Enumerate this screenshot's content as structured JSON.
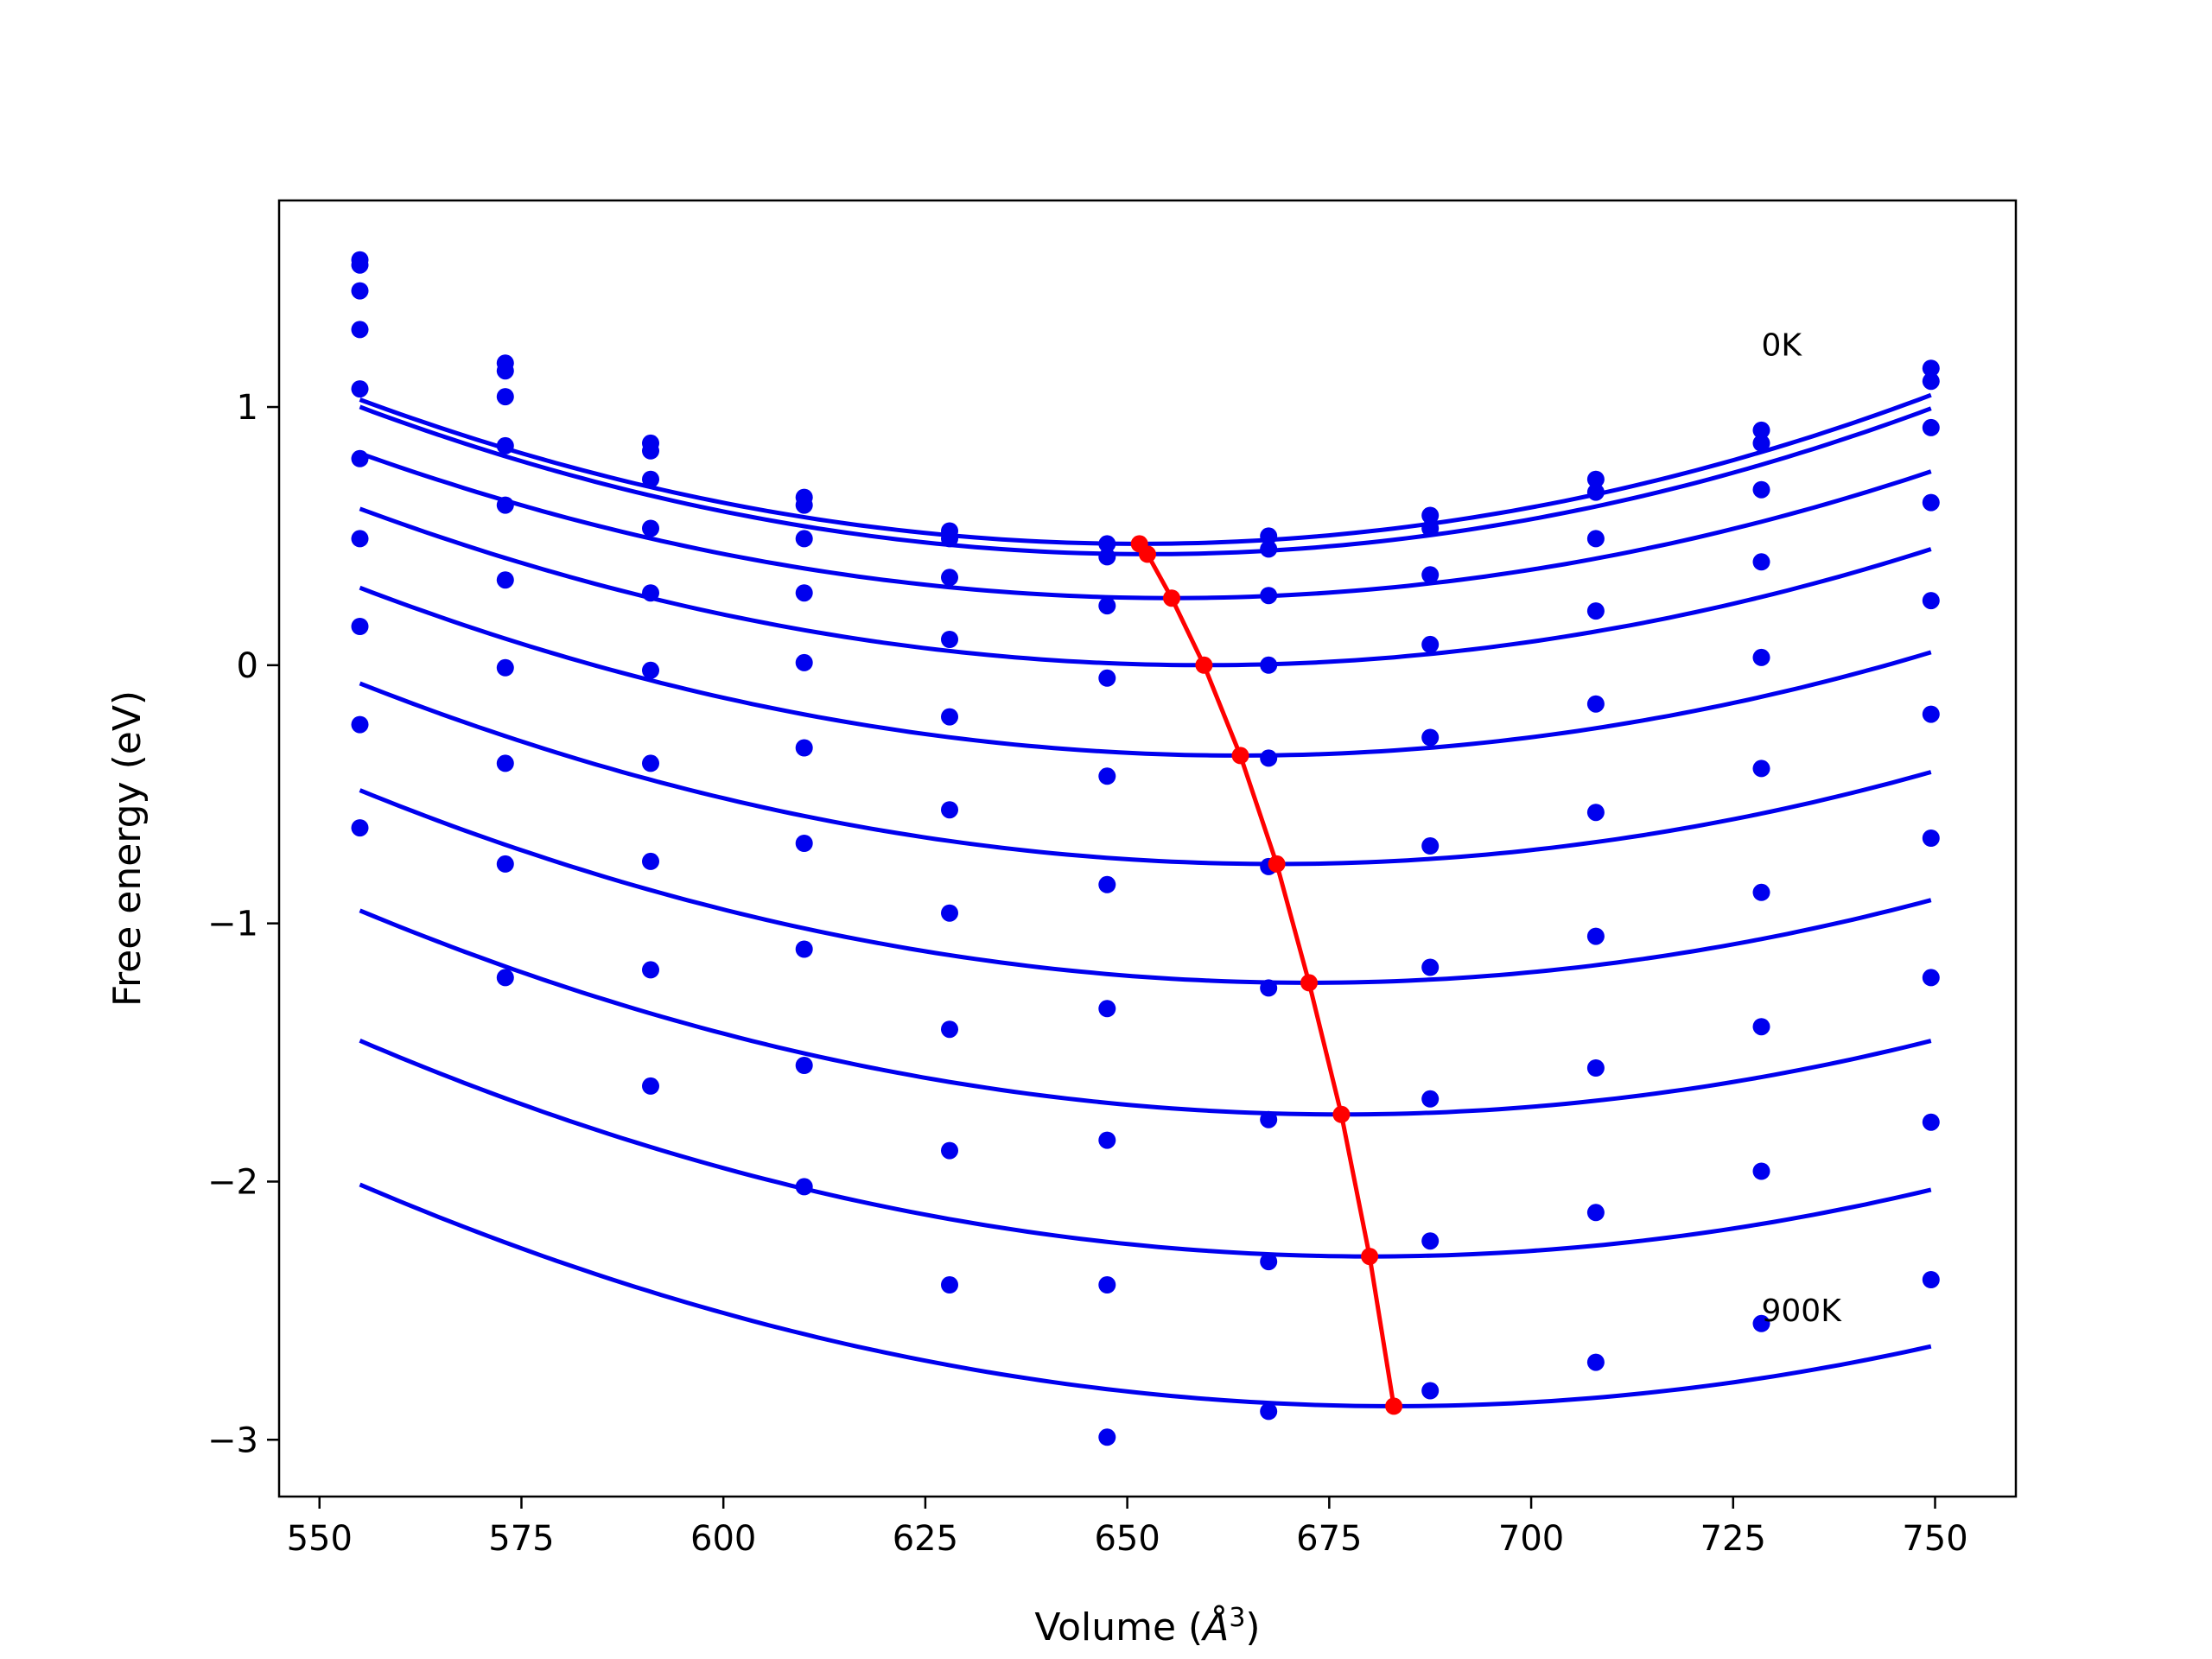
{
  "chart_data": {
    "type": "line",
    "xlabel_prefix": "Volume (",
    "xlabel_symbol": "Å",
    "xlabel_sup": "3",
    "xlabel_suffix": ")",
    "ylabel": "Free energy (eV)",
    "xlim": [
      545,
      760
    ],
    "ylim": [
      -3.22,
      1.8
    ],
    "xticks": [
      550,
      575,
      600,
      625,
      650,
      675,
      700,
      725,
      750
    ],
    "yticks": [
      -3,
      -2,
      -1,
      0,
      1
    ],
    "grid": false,
    "legend": "none",
    "annotations": [
      {
        "text": "0K",
        "x": 728.5,
        "y": 1.2
      },
      {
        "text": "900K",
        "x": 728.5,
        "y": -2.54
      }
    ],
    "colors": {
      "curves": "#0000ee",
      "minima": "#ff0000"
    },
    "x_points": [
      555,
      573,
      591,
      610,
      628,
      647.5,
      667.5,
      687.5,
      708,
      728.5,
      749.5
    ],
    "series": [
      {
        "points": [
          1.57,
          1.17,
          0.86,
          0.65,
          0.52,
          0.47,
          0.5,
          0.58,
          0.72,
          0.91,
          1.15
        ],
        "fit": {
          "a": 6e-05,
          "v0": 651.5,
          "e0": 0.47
        }
      },
      {
        "points": [
          1.55,
          1.14,
          0.83,
          0.62,
          0.49,
          0.42,
          0.45,
          0.53,
          0.67,
          0.86,
          1.1
        ],
        "fit": {
          "a": 6e-05,
          "v0": 652.5,
          "e0": 0.43
        }
      },
      {
        "points": [
          1.45,
          1.04,
          0.72,
          0.49,
          0.34,
          0.23,
          0.27,
          0.35,
          0.49,
          0.68,
          0.92
        ],
        "fit": {
          "a": 5.55e-05,
          "v0": 655.5,
          "e0": 0.26
        }
      },
      {
        "points": [
          1.3,
          0.85,
          0.53,
          0.28,
          0.1,
          -0.05,
          0.0,
          0.08,
          0.21,
          0.4,
          0.63
        ],
        "fit": {
          "a": 5.55e-05,
          "v0": 659.5,
          "e0": 0.0
        }
      },
      {
        "points": [
          1.07,
          0.62,
          0.28,
          0.01,
          -0.2,
          -0.43,
          -0.36,
          -0.28,
          -0.15,
          0.03,
          0.25
        ],
        "fit": {
          "a": 5.47e-05,
          "v0": 664.0,
          "e0": -0.35
        }
      },
      {
        "points": [
          0.8,
          0.33,
          -0.02,
          -0.32,
          -0.56,
          -0.85,
          -0.78,
          -0.7,
          -0.57,
          -0.4,
          -0.19
        ],
        "fit": {
          "a": 5.43e-05,
          "v0": 668.5,
          "e0": -0.77
        }
      },
      {
        "points": [
          0.49,
          -0.01,
          -0.38,
          -0.69,
          -0.96,
          -1.33,
          -1.25,
          -1.17,
          -1.05,
          -0.88,
          -0.67
        ],
        "fit": {
          "a": 5.4e-05,
          "v0": 672.5,
          "e0": -1.23
        }
      },
      {
        "points": [
          0.15,
          -0.38,
          -0.76,
          -1.1,
          -1.41,
          -1.84,
          -1.76,
          -1.68,
          -1.56,
          -1.4,
          -1.21
        ],
        "fit": {
          "a": 5.35e-05,
          "v0": 676.5,
          "e0": -1.74
        }
      },
      {
        "points": [
          -0.23,
          -0.77,
          -1.18,
          -1.55,
          -1.88,
          -2.4,
          -2.31,
          -2.23,
          -2.12,
          -1.96,
          -1.77
        ],
        "fit": {
          "a": 5.35e-05,
          "v0": 680.0,
          "e0": -2.29
        }
      },
      {
        "points": [
          -0.63,
          -1.21,
          -1.63,
          -2.02,
          -2.4,
          -2.99,
          -2.89,
          -2.81,
          -2.7,
          -2.55,
          -2.38
        ],
        "fit": {
          "a": 5.24e-05,
          "v0": 683.0,
          "e0": -2.87
        }
      }
    ],
    "minima_line": {
      "x": [
        651.5,
        652.5,
        655.5,
        659.5,
        664.0,
        668.5,
        672.5,
        676.5,
        680.0,
        683.0
      ],
      "y": [
        0.47,
        0.43,
        0.26,
        0.0,
        -0.35,
        -0.77,
        -1.23,
        -1.74,
        -2.29,
        -2.87
      ]
    }
  }
}
